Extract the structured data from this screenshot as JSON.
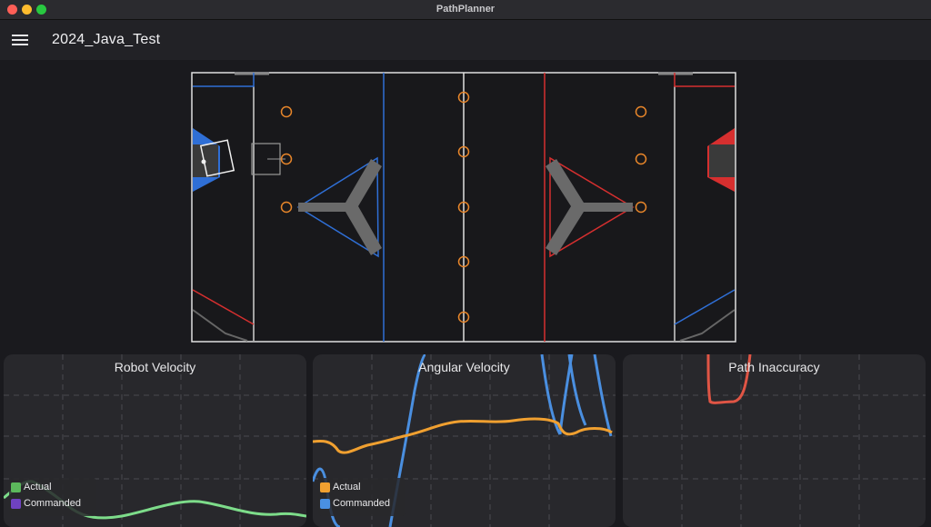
{
  "window": {
    "title": "PathPlanner"
  },
  "appbar": {
    "project_title": "2024_Java_Test",
    "menu_icon": "menu-icon"
  },
  "charts": {
    "robot_velocity": {
      "title": "Robot Velocity",
      "legend": [
        {
          "label": "Actual",
          "color": "#5cb85c"
        },
        {
          "label": "Commanded",
          "color": "#6f42c1"
        }
      ]
    },
    "angular_velocity": {
      "title": "Angular Velocity",
      "legend": [
        {
          "label": "Actual",
          "color": "#f0a030"
        },
        {
          "label": "Commanded",
          "color": "#4a90e2"
        }
      ]
    },
    "path_inaccuracy": {
      "title": "Path Inaccuracy"
    }
  }
}
